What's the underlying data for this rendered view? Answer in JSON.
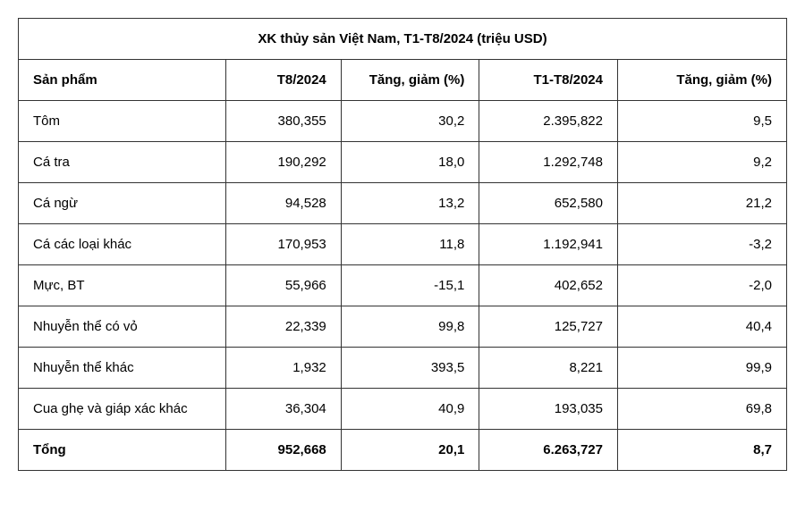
{
  "title": "XK thủy sản Việt Nam, T1-T8/2024 (triệu USD)",
  "columns": {
    "product": "Sản phẩm",
    "c1": "T8/2024",
    "c2": "Tăng, giảm (%)",
    "c3": "T1-T8/2024",
    "c4": "Tăng, giảm (%)"
  },
  "rows": [
    {
      "product": "Tôm",
      "c1": "380,355",
      "c2": "30,2",
      "c3": "2.395,822",
      "c4": "9,5"
    },
    {
      "product": "Cá tra",
      "c1": "190,292",
      "c2": "18,0",
      "c3": "1.292,748",
      "c4": "9,2"
    },
    {
      "product": "Cá ngừ",
      "c1": "94,528",
      "c2": "13,2",
      "c3": "652,580",
      "c4": "21,2"
    },
    {
      "product": "Cá các loại khác",
      "c1": "170,953",
      "c2": "11,8",
      "c3": "1.192,941",
      "c4": "-3,2"
    },
    {
      "product": "Mực, BT",
      "c1": "55,966",
      "c2": "-15,1",
      "c3": "402,652",
      "c4": "-2,0"
    },
    {
      "product": "Nhuyễn thể có vỏ",
      "c1": "22,339",
      "c2": "99,8",
      "c3": "125,727",
      "c4": "40,4"
    },
    {
      "product": "Nhuyễn thể khác",
      "c1": "1,932",
      "c2": "393,5",
      "c3": "8,221",
      "c4": "99,9"
    },
    {
      "product": "Cua ghẹ và giáp xác khác",
      "c1": "36,304",
      "c2": "40,9",
      "c3": "193,035",
      "c4": "69,8"
    }
  ],
  "total": {
    "product": "Tổng",
    "c1": "952,668",
    "c2": "20,1",
    "c3": "6.263,727",
    "c4": "8,7"
  }
}
